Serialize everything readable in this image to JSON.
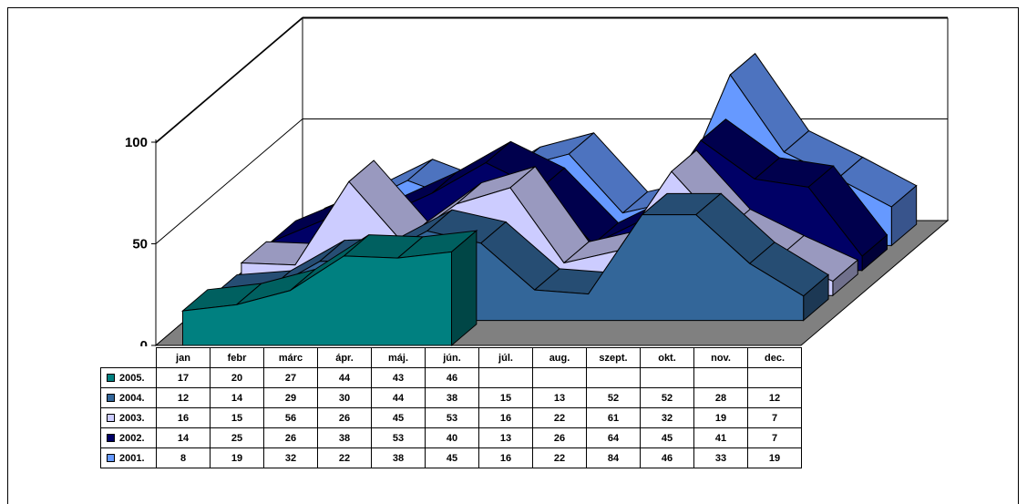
{
  "chart_data": {
    "type": "area",
    "title": "",
    "xlabel": "",
    "ylabel": "",
    "ylim": [
      0,
      150
    ],
    "yticks": [
      "0",
      "50",
      "100"
    ],
    "grid": true,
    "legend_placement": "table-left",
    "categories": [
      "jan",
      "febr",
      "márc",
      "ápr.",
      "máj.",
      "jún.",
      "júl.",
      "aug.",
      "szept.",
      "okt.",
      "nov.",
      "dec."
    ],
    "series": [
      {
        "name": "2001.",
        "color": "#6699ff",
        "values": [
          8,
          19,
          32,
          22,
          38,
          45,
          16,
          22,
          84,
          46,
          33,
          19
        ]
      },
      {
        "name": "2002.",
        "color": "#000066",
        "values": [
          14,
          25,
          26,
          38,
          53,
          40,
          13,
          26,
          64,
          45,
          41,
          7
        ]
      },
      {
        "name": "2003.",
        "color": "#ccccff",
        "values": [
          16,
          15,
          56,
          26,
          45,
          53,
          16,
          22,
          61,
          32,
          19,
          7
        ]
      },
      {
        "name": "2004.",
        "color": "#336699",
        "values": [
          12,
          14,
          29,
          30,
          44,
          38,
          15,
          13,
          52,
          52,
          28,
          12
        ]
      },
      {
        "name": "2005.",
        "color": "#008080",
        "values": [
          17,
          20,
          27,
          44,
          43,
          46,
          null,
          null,
          null,
          null,
          null,
          null
        ]
      }
    ]
  }
}
